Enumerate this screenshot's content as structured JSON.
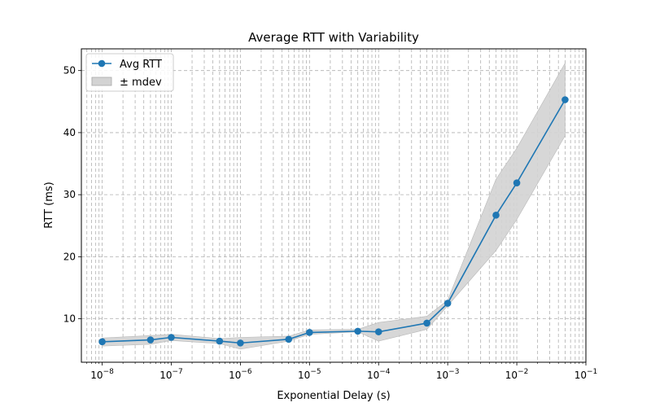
{
  "chart_data": {
    "type": "line",
    "title": "Average RTT with Variability",
    "xlabel": "Exponential Delay (s)",
    "ylabel": "RTT (ms)",
    "xscale": "log",
    "xlim": [
      5e-09,
      0.1
    ],
    "ylim": [
      3,
      53.5
    ],
    "grid": true,
    "legend_position": "top-left",
    "x_tick_labels": [
      "10^-8",
      "10^-7",
      "10^-6",
      "10^-5",
      "10^-4",
      "10^-3",
      "10^-2",
      "10^-1"
    ],
    "y_ticks": [
      10,
      20,
      30,
      40,
      50
    ],
    "x": [
      1e-08,
      5e-08,
      1e-07,
      5e-07,
      1e-06,
      5e-06,
      1e-05,
      5e-05,
      0.0001,
      0.0005,
      0.001,
      0.005,
      0.01,
      0.05
    ],
    "series": [
      {
        "name": "Avg RTT",
        "color": "#1f77b4",
        "marker": "circle",
        "values": [
          6.3,
          6.6,
          7.0,
          6.4,
          6.1,
          6.7,
          7.8,
          8.0,
          7.9,
          9.3,
          12.5,
          26.7,
          31.9,
          45.3
        ]
      }
    ],
    "band": {
      "name": "± mdev",
      "color": "#d3d3d3",
      "lower": [
        5.6,
        5.9,
        6.5,
        6.0,
        5.1,
        6.4,
        7.5,
        7.9,
        6.4,
        8.3,
        12.1,
        21.0,
        26.0,
        39.5
      ],
      "upper": [
        6.9,
        7.3,
        7.5,
        6.8,
        7.0,
        7.2,
        8.2,
        8.3,
        9.4,
        10.4,
        13.0,
        32.5,
        37.5,
        51.2
      ]
    }
  }
}
